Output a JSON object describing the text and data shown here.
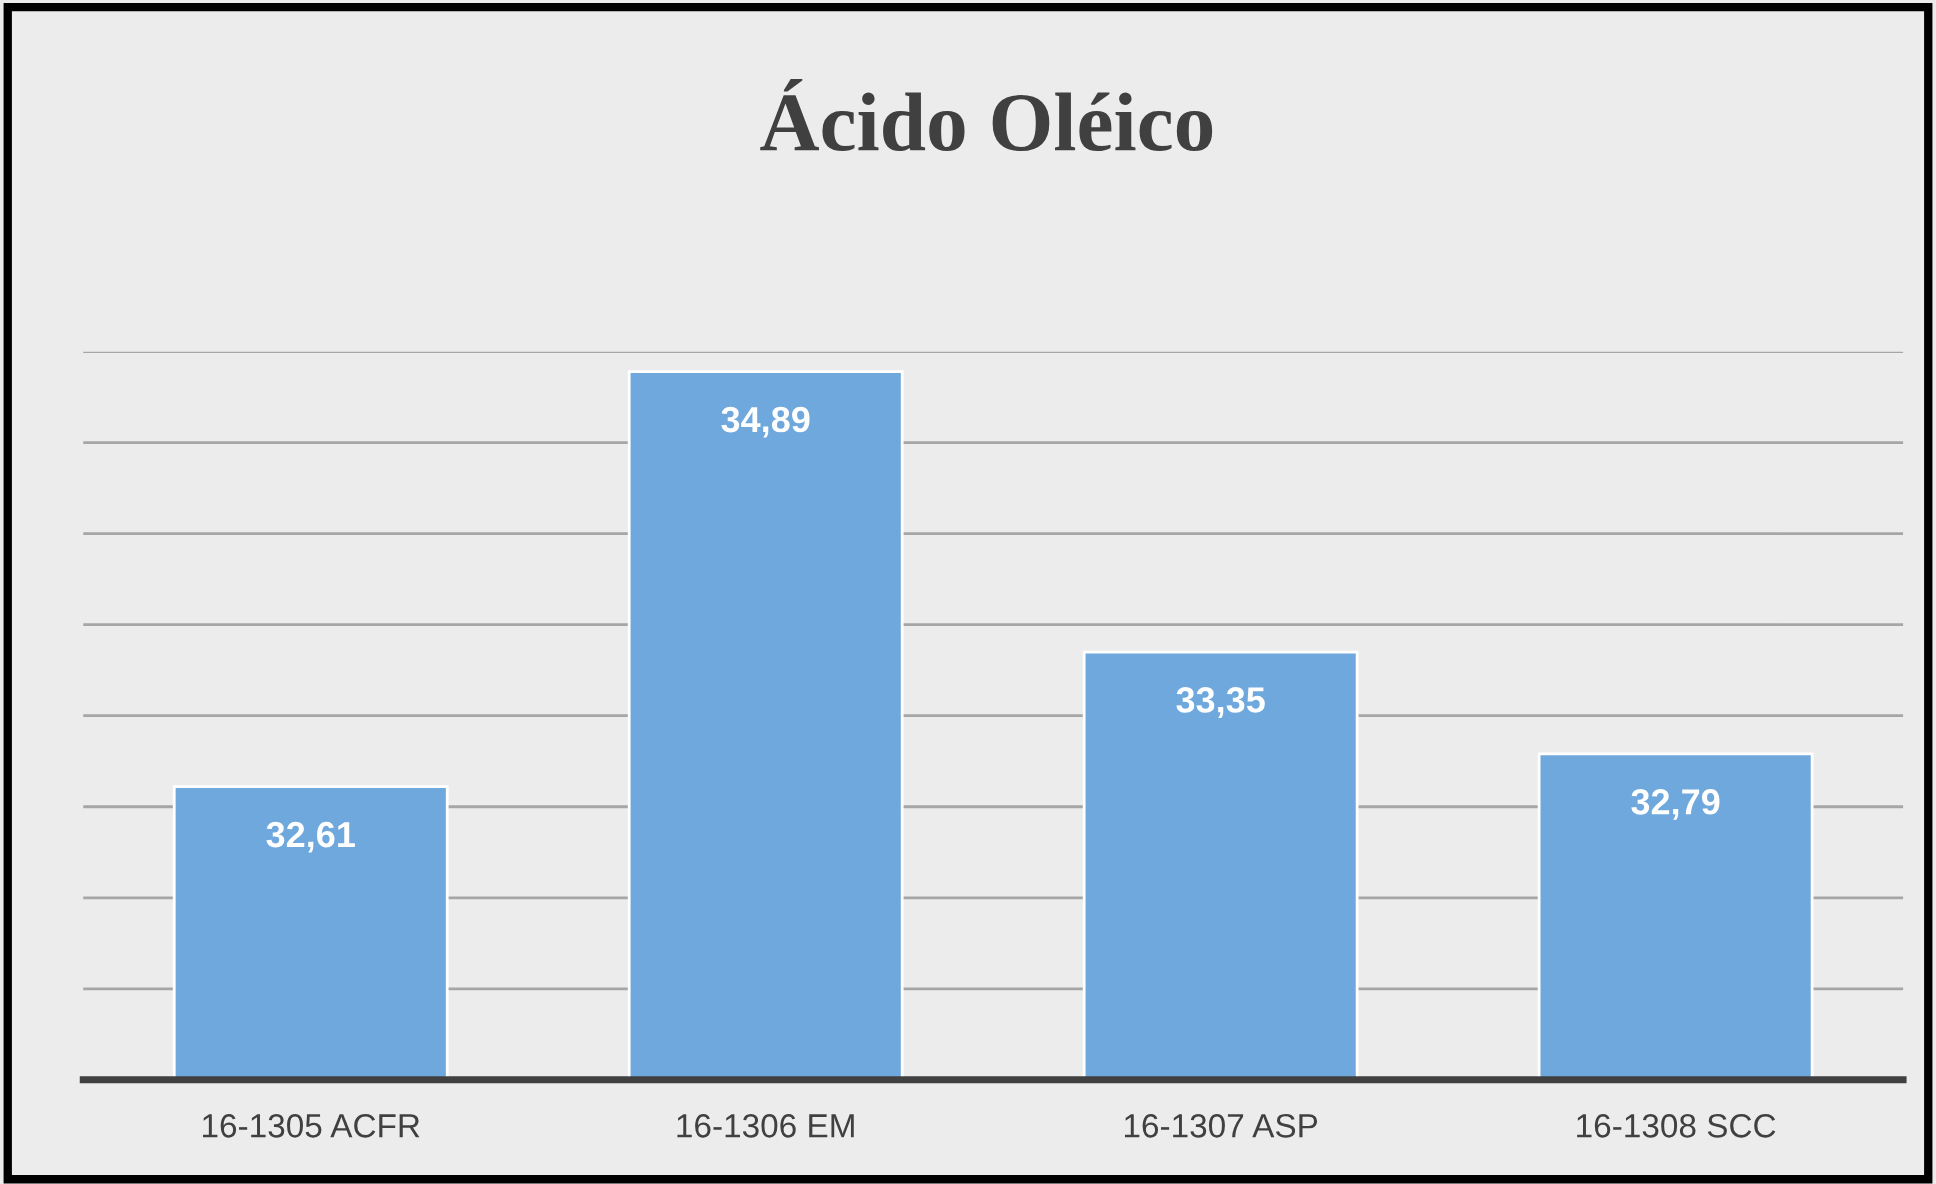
{
  "chart_data": {
    "type": "bar",
    "title": "Ácido Oléico",
    "categories": [
      "16-1305 ACFR",
      "16-1306 EM",
      "16-1307 ASP",
      "16-1308 SCC"
    ],
    "series": [
      {
        "color": "#6fa8dc",
        "values": [
          32.61,
          34.89,
          33.35,
          32.79
        ],
        "value_labels": [
          "32,61",
          "34,89",
          "33,35",
          "32,79"
        ]
      }
    ],
    "ylim": [
      31,
      35
    ],
    "grid": "y",
    "tick_labels": "x"
  }
}
